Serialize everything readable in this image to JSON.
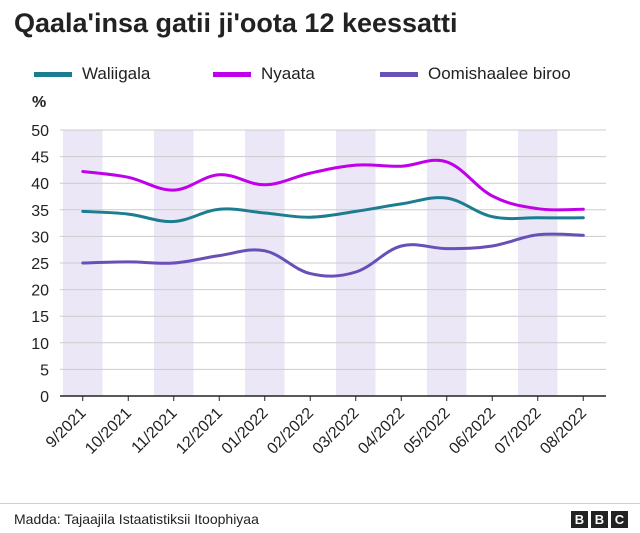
{
  "chart_data": {
    "type": "line",
    "title": "Qaala'insa gatii ji'oota 12 keessatti",
    "ylabel": "%",
    "xlabel": "",
    "ylim": [
      0,
      50
    ],
    "yticks": [
      0,
      5,
      10,
      15,
      20,
      25,
      30,
      35,
      40,
      45,
      50
    ],
    "grid": true,
    "legend_position": "top",
    "categories": [
      "9/2021",
      "10/2021",
      "11/2021",
      "12/2021",
      "01/2022",
      "02/2022",
      "03/2022",
      "04/2022",
      "05/2022",
      "06/2022",
      "07/2022",
      "08/2022"
    ],
    "series": [
      {
        "name": "Waliigala",
        "color": "#1b7d8f",
        "values": [
          34.7,
          34.2,
          32.8,
          35.1,
          34.4,
          33.6,
          34.7,
          36.1,
          37.2,
          33.7,
          33.5,
          33.5
        ]
      },
      {
        "name": "Nyaata",
        "color": "#bf00e8",
        "values": [
          42.2,
          41.1,
          38.7,
          41.6,
          39.7,
          41.9,
          43.4,
          43.2,
          44.0,
          37.6,
          35.2,
          35.1
        ]
      },
      {
        "name": "Oomishaalee biroo",
        "color": "#6950b8",
        "values": [
          25.0,
          25.2,
          25.0,
          26.4,
          27.3,
          23.0,
          23.3,
          28.2,
          27.7,
          28.2,
          30.3,
          30.2
        ]
      }
    ]
  },
  "source": "Madda: Tajaajila Istaatistiksii Itoophiyaa",
  "brand": [
    "B",
    "B",
    "C"
  ]
}
